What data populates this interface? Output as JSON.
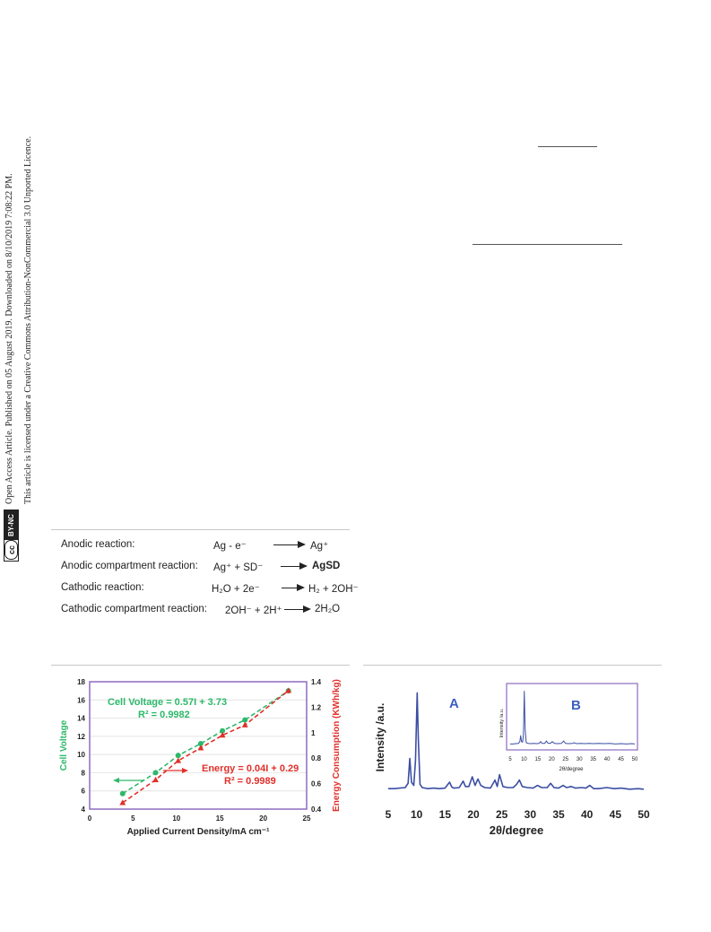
{
  "margin_notice": {
    "line1": "Open Access Article. Published on 05 August 2019. Downloaded on 8/10/2019 7:08:22 PM.",
    "line2": "This article is licensed under a Creative Commons Attribution-NonCommercial 3.0 Unported Licence.",
    "badge_cc": "cc",
    "badge_text": "BY-NC"
  },
  "reactions": [
    {
      "label": "Anodic reaction:",
      "lhs": "Ag  -  e⁻",
      "rhs": "Ag⁺",
      "rhs_bold": false
    },
    {
      "label": "Anodic compartment reaction:",
      "lhs": "Ag⁺  +  SD⁻",
      "rhs": "AgSD",
      "rhs_bold": true
    },
    {
      "label": "Cathodic reaction:",
      "lhs": "H₂O  +  2e⁻",
      "rhs": "H₂ + 2OH⁻",
      "rhs_bold": false
    },
    {
      "label": "Cathodic compartment reaction:",
      "lhs": "2OH⁻  +  2H⁺",
      "rhs": "2H₂O",
      "rhs_bold": false
    }
  ],
  "colors": {
    "voltage": "#2db86a",
    "energy": "#e0302a",
    "xrd": "#3b4ea3",
    "frame": "#8e6cc0",
    "label_blue": "#3b5fc0"
  },
  "chart_data": [
    {
      "type": "line",
      "xlabel": "Applied Current Density/mA cm⁻¹",
      "ylabel": "Cell Voltage",
      "y2label": "Energy Consumption (KWh/kg)",
      "xlim": [
        0,
        25
      ],
      "xticks": [
        0,
        5,
        10,
        15,
        20,
        25
      ],
      "ylim": [
        4,
        18
      ],
      "yticks": [
        4,
        6,
        8,
        10,
        12,
        14,
        16,
        18
      ],
      "y2lim": [
        0.4,
        1.4
      ],
      "y2ticks": [
        "0.4",
        "0.6",
        "0.8",
        "1",
        "1.2",
        "1.4"
      ],
      "series": [
        {
          "name": "Cell Voltage",
          "axis": "left",
          "marker": "circle",
          "x": [
            3.8,
            7.6,
            10.2,
            12.8,
            15.3,
            17.9,
            22.9
          ],
          "y": [
            5.7,
            8.0,
            9.9,
            11.2,
            12.6,
            13.8,
            17.0
          ]
        },
        {
          "name": "Energy",
          "axis": "right",
          "marker": "triangle",
          "x": [
            3.8,
            7.6,
            10.2,
            12.8,
            15.3,
            17.9,
            22.9
          ],
          "y": [
            0.45,
            0.63,
            0.78,
            0.88,
            0.98,
            1.06,
            1.33
          ]
        }
      ],
      "annotations": [
        {
          "text": "Cell Voltage = 0.57I + 3.73",
          "series": "Cell Voltage"
        },
        {
          "text": "R² = 0.9982",
          "series": "Cell Voltage"
        },
        {
          "text": "Energy = 0.04I + 0.29",
          "series": "Energy"
        },
        {
          "text": "R² = 0.9989",
          "series": "Energy"
        }
      ]
    },
    {
      "type": "line",
      "xlabel": "2θ/degree",
      "ylabel": "Intensity /a.u.",
      "panel_label": "A",
      "xlim": [
        5,
        50
      ],
      "xticks": [
        5,
        10,
        15,
        20,
        25,
        30,
        35,
        40,
        45,
        50
      ],
      "series": [
        {
          "name": "A",
          "x": [
            5,
            6,
            7,
            8,
            8.5,
            8.8,
            9.1,
            9.5,
            9.8,
            10.1,
            10.3,
            10.6,
            11,
            12,
            13,
            14,
            15,
            15.8,
            16.2,
            16.6,
            17.5,
            18.2,
            18.6,
            19.2,
            19.8,
            20.3,
            20.8,
            21.3,
            22,
            23,
            23.8,
            24.2,
            24.6,
            25.2,
            26,
            27,
            27.6,
            28.1,
            28.6,
            29.5,
            30.5,
            31.3,
            32,
            33,
            33.6,
            34.2,
            35,
            35.8,
            36.4,
            37.2,
            38,
            39,
            39.8,
            40.5,
            41.2,
            42,
            43.5,
            44.8,
            46,
            47.5,
            49,
            50
          ],
          "y": [
            0.04,
            0.04,
            0.045,
            0.05,
            0.09,
            0.32,
            0.1,
            0.07,
            0.3,
            0.93,
            0.5,
            0.08,
            0.05,
            0.04,
            0.045,
            0.04,
            0.045,
            0.1,
            0.055,
            0.045,
            0.05,
            0.11,
            0.06,
            0.06,
            0.15,
            0.07,
            0.13,
            0.07,
            0.05,
            0.045,
            0.12,
            0.06,
            0.17,
            0.06,
            0.05,
            0.05,
            0.08,
            0.12,
            0.06,
            0.05,
            0.045,
            0.07,
            0.05,
            0.05,
            0.09,
            0.05,
            0.045,
            0.07,
            0.05,
            0.06,
            0.045,
            0.05,
            0.045,
            0.07,
            0.04,
            0.04,
            0.05,
            0.04,
            0.045,
            0.035,
            0.04,
            0.035
          ]
        }
      ],
      "inset": {
        "panel_label": "B",
        "xlabel": "2θ/degree",
        "ylabel": "Intensity /a.u.",
        "xlim": [
          5,
          50
        ],
        "xticks": [
          5,
          10,
          15,
          20,
          25,
          30,
          35,
          40,
          45,
          50
        ],
        "series": [
          {
            "name": "B",
            "x": [
              5,
              6,
              7,
              8,
              8.5,
              8.8,
              9.1,
              9.5,
              9.8,
              10.1,
              10.4,
              10.8,
              11.5,
              12.5,
              13.5,
              14.5,
              15.5,
              16,
              16.5,
              17.5,
              18.1,
              18.6,
              19.5,
              20.2,
              21,
              22,
              23.5,
              24.3,
              25,
              26,
              27.5,
              28.2,
              29,
              30.5,
              32,
              33.5,
              35,
              37,
              39,
              41,
              43,
              45,
              47,
              49,
              50
            ],
            "y": [
              0.04,
              0.04,
              0.045,
              0.05,
              0.08,
              0.18,
              0.08,
              0.07,
              0.2,
              0.93,
              0.3,
              0.06,
              0.05,
              0.045,
              0.05,
              0.045,
              0.05,
              0.08,
              0.05,
              0.05,
              0.09,
              0.055,
              0.05,
              0.08,
              0.05,
              0.045,
              0.05,
              0.09,
              0.05,
              0.045,
              0.05,
              0.06,
              0.045,
              0.05,
              0.045,
              0.05,
              0.045,
              0.05,
              0.045,
              0.05,
              0.04,
              0.045,
              0.04,
              0.045,
              0.04
            ]
          }
        ]
      }
    }
  ]
}
